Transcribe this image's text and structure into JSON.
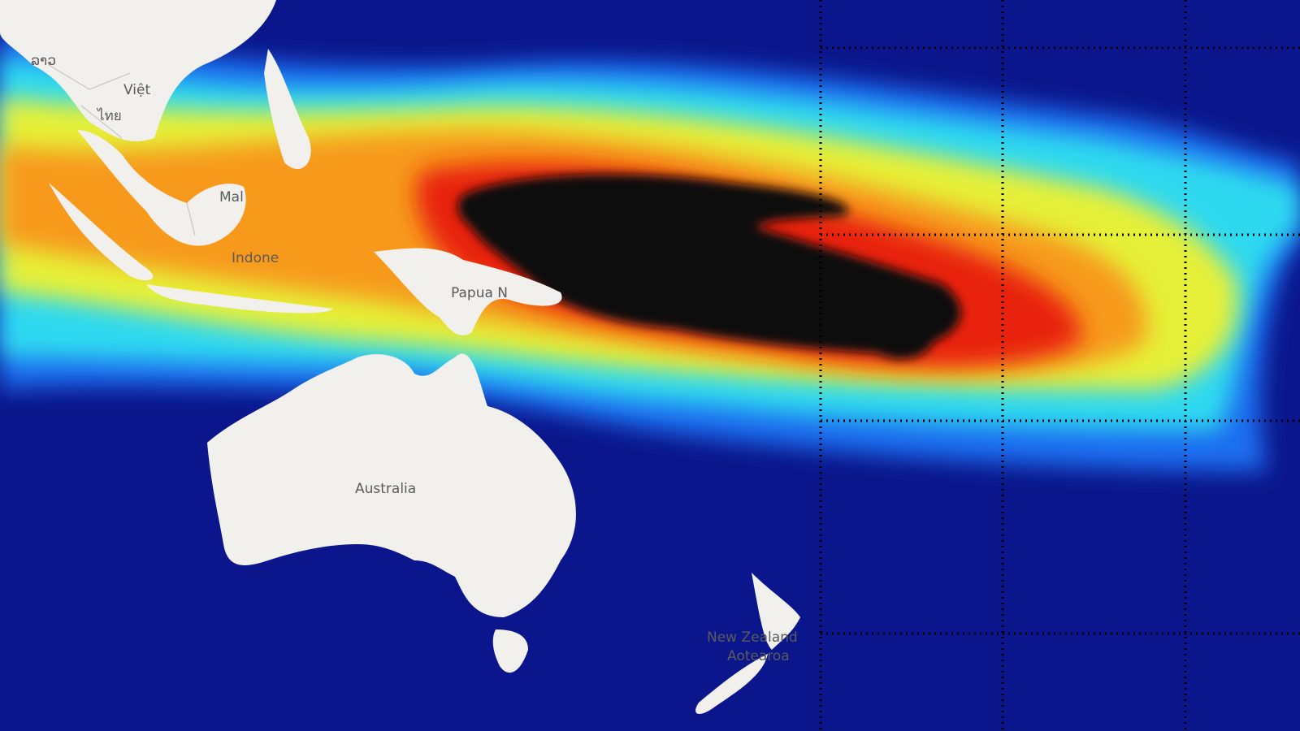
{
  "labels": [
    "ລາວ",
    "Việt",
    "ไทย",
    "Mal",
    "Indone",
    "Papua N",
    "Australia",
    "New Zealand",
    "Aotearoa"
  ]
}
